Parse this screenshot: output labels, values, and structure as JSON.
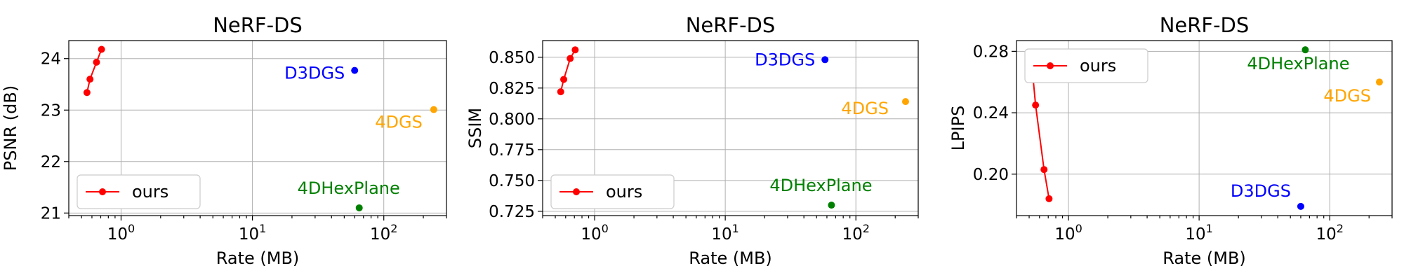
{
  "chart_data": [
    {
      "type": "scatter",
      "title": "NeRF-DS",
      "xlabel": "Rate (MB)",
      "ylabel": "PSNR (dB)",
      "xscale": "log",
      "xlim": [
        0.4,
        300
      ],
      "ylim": [
        20.95,
        24.35
      ],
      "xticks": [
        {
          "value": 1,
          "base": "10",
          "exp": "0"
        },
        {
          "value": 10,
          "base": "10",
          "exp": "1"
        },
        {
          "value": 100,
          "base": "10",
          "exp": "2"
        }
      ],
      "yticks": [
        {
          "value": 21,
          "label": "21"
        },
        {
          "value": 22,
          "label": "22"
        },
        {
          "value": 23,
          "label": "23"
        },
        {
          "value": 24,
          "label": "24"
        }
      ],
      "grid": true,
      "legend": {
        "position": "lower-left",
        "entries": [
          "ours"
        ]
      },
      "series": [
        {
          "name": "ours",
          "color": "#ff0000",
          "mode": "line+markers",
          "x": [
            0.55,
            0.58,
            0.65,
            0.71
          ],
          "y": [
            23.34,
            23.6,
            23.93,
            24.18
          ]
        }
      ],
      "points": [
        {
          "label": "D3DGS",
          "color": "#0000ff",
          "x": 60,
          "y": 23.77,
          "label_side": "left",
          "label_dx": -14,
          "label_dy": 12
        },
        {
          "label": "4DGS",
          "color": "#ffa500",
          "x": 240,
          "y": 23.01,
          "label_side": "left",
          "label_dx": -16,
          "label_dy": 26
        },
        {
          "label": "4DHexPlane",
          "color": "#008000",
          "x": 65,
          "y": 21.1,
          "label_side": "center",
          "label_dx": -15,
          "label_dy": -20
        }
      ]
    },
    {
      "type": "scatter",
      "title": "NeRF-DS",
      "xlabel": "Rate (MB)",
      "ylabel": "SSIM",
      "xscale": "log",
      "xlim": [
        0.4,
        300
      ],
      "ylim": [
        0.7215,
        0.8635
      ],
      "xticks": [
        {
          "value": 1,
          "base": "10",
          "exp": "0"
        },
        {
          "value": 10,
          "base": "10",
          "exp": "1"
        },
        {
          "value": 100,
          "base": "10",
          "exp": "2"
        }
      ],
      "yticks": [
        {
          "value": 0.725,
          "label": "0.725"
        },
        {
          "value": 0.75,
          "label": "0.750"
        },
        {
          "value": 0.775,
          "label": "0.775"
        },
        {
          "value": 0.8,
          "label": "0.800"
        },
        {
          "value": 0.825,
          "label": "0.825"
        },
        {
          "value": 0.85,
          "label": "0.850"
        }
      ],
      "grid": true,
      "legend": {
        "position": "lower-left",
        "entries": [
          "ours"
        ]
      },
      "series": [
        {
          "name": "ours",
          "color": "#ff0000",
          "mode": "line+markers",
          "x": [
            0.55,
            0.58,
            0.65,
            0.71
          ],
          "y": [
            0.822,
            0.832,
            0.849,
            0.856
          ]
        }
      ],
      "points": [
        {
          "label": "D3DGS",
          "color": "#0000ff",
          "x": 58,
          "y": 0.848,
          "label_side": "left",
          "label_dx": -14,
          "label_dy": 8
        },
        {
          "label": "4DGS",
          "color": "#ffa500",
          "x": 240,
          "y": 0.814,
          "label_side": "left",
          "label_dx": -24,
          "label_dy": 18
        },
        {
          "label": "4DHexPlane",
          "color": "#008000",
          "x": 65,
          "y": 0.73,
          "label_side": "center",
          "label_dx": -15,
          "label_dy": -20
        }
      ]
    },
    {
      "type": "scatter",
      "title": "NeRF-DS",
      "xlabel": "Rate (MB)",
      "ylabel": "LPIPS",
      "xscale": "log",
      "xlim": [
        0.4,
        300
      ],
      "ylim": [
        0.173,
        0.287
      ],
      "xticks": [
        {
          "value": 1,
          "base": "10",
          "exp": "0"
        },
        {
          "value": 10,
          "base": "10",
          "exp": "1"
        },
        {
          "value": 100,
          "base": "10",
          "exp": "2"
        }
      ],
      "yticks": [
        {
          "value": 0.2,
          "label": "0.20"
        },
        {
          "value": 0.24,
          "label": "0.24"
        },
        {
          "value": 0.28,
          "label": "0.28"
        }
      ],
      "grid": true,
      "legend": {
        "position": "upper-left",
        "entries": [
          "ours"
        ]
      },
      "series": [
        {
          "name": "ours",
          "color": "#ff0000",
          "mode": "line+markers",
          "x": [
            0.53,
            0.56,
            0.65,
            0.71
          ],
          "y": [
            0.267,
            0.245,
            0.203,
            0.184
          ]
        }
      ],
      "points": [
        {
          "label": "D3DGS",
          "color": "#0000ff",
          "x": 60,
          "y": 0.179,
          "label_side": "left",
          "label_dx": -14,
          "label_dy": -14
        },
        {
          "label": "4DGS",
          "color": "#ffa500",
          "x": 240,
          "y": 0.26,
          "label_side": "left",
          "label_dx": -12,
          "label_dy": 28
        },
        {
          "label": "4DHexPlane",
          "color": "#008000",
          "x": 65,
          "y": 0.281,
          "label_side": "center",
          "label_dx": -10,
          "label_dy": 28
        }
      ]
    }
  ]
}
